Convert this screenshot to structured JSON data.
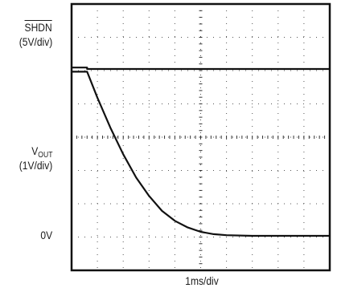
{
  "chart_data": {
    "type": "line",
    "xlabel": "1ms/div",
    "grid": true,
    "x_divisions": 10,
    "y_divisions": 8,
    "channels": [
      {
        "label": "SHDN",
        "label_overbar": true,
        "scale": "(5V/div)"
      },
      {
        "label_main": "V",
        "label_sub": "OUT",
        "scale": "(1V/div)",
        "ground_label": "0V"
      }
    ],
    "series": [
      {
        "x": [
          0,
          0.6,
          0.6,
          10
        ],
        "y": [
          0.22,
          0.22,
          0.0,
          0.0
        ]
      },
      {
        "x": [
          0,
          0.6,
          1.0,
          1.5,
          2.0,
          2.5,
          3.0,
          3.5,
          4.0,
          4.5,
          5.0,
          5.5,
          6.0,
          7.0,
          8.0,
          10.0
        ],
        "y": [
          4.93,
          4.93,
          4.15,
          3.25,
          2.45,
          1.75,
          1.2,
          0.75,
          0.45,
          0.25,
          0.12,
          0.05,
          0.02,
          0.0,
          0.0,
          0.0
        ]
      }
    ]
  }
}
